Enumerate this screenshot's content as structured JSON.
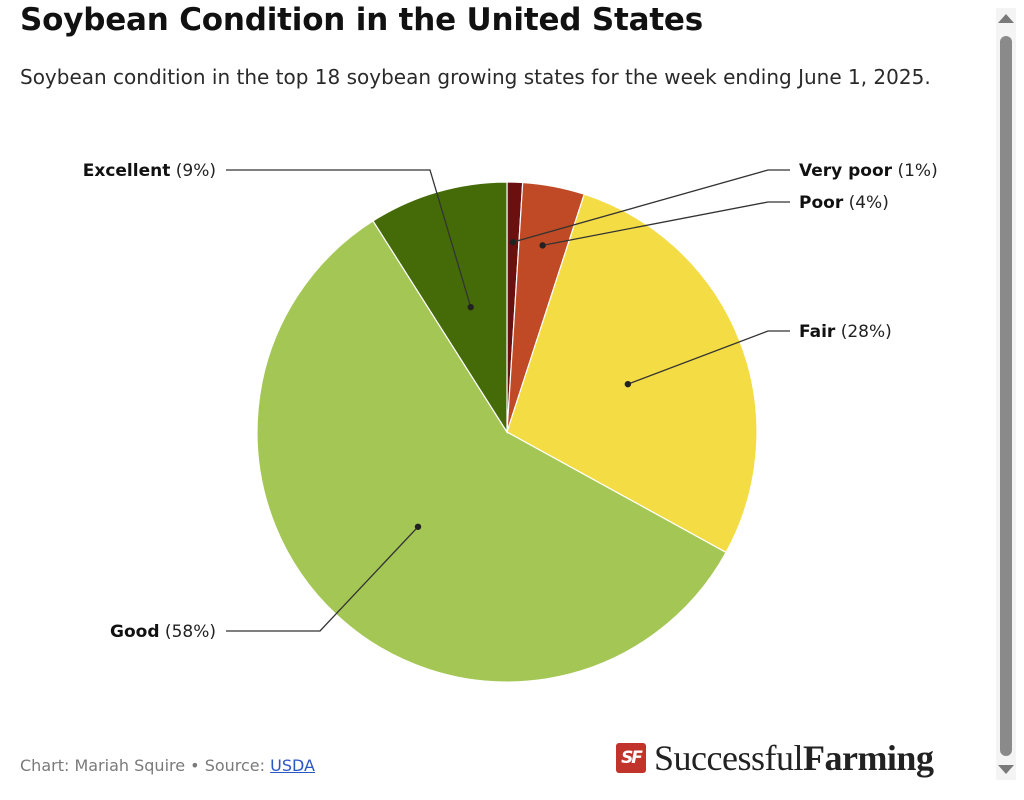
{
  "title": "Soybean Condition in the United States",
  "subtitle": "Soybean condition in the top 18 soybean growing states for the week ending June 1, 2025.",
  "footer": {
    "credit": "Chart: Mariah Squire • Source: ",
    "source_link": "USDA"
  },
  "logo": {
    "part1": "Successful",
    "part2": "Farming",
    "mark": "SF"
  },
  "chart_data": {
    "type": "pie",
    "start_angle_deg": 0,
    "direction": "clockwise",
    "slices": [
      {
        "label": "Very poor",
        "value": 1,
        "value_label": "(1%)",
        "color": "#6b0f0f"
      },
      {
        "label": "Poor",
        "value": 4,
        "value_label": "(4%)",
        "color": "#c04a25"
      },
      {
        "label": "Fair",
        "value": 28,
        "value_label": "(28%)",
        "color": "#f3dc44"
      },
      {
        "label": "Good",
        "value": 58,
        "value_label": "(58%)",
        "color": "#a3c654"
      },
      {
        "label": "Excellent",
        "value": 9,
        "value_label": "(9%)",
        "color": "#456b08"
      }
    ]
  }
}
